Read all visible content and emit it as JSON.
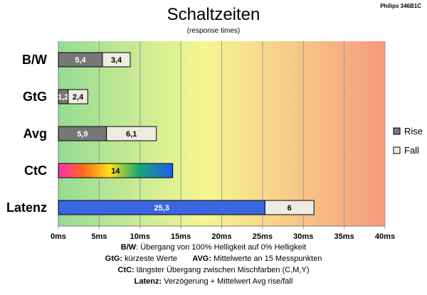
{
  "chart_data": {
    "type": "bar",
    "orientation": "horizontal",
    "stacked": true,
    "title": "Schaltzeiten",
    "subtitle": "(response times)",
    "model": "Philips 346B1C",
    "categories": [
      "B/W",
      "GtG",
      "Avg",
      "CtC",
      "Latenz"
    ],
    "series": [
      {
        "name": "Rise",
        "values": [
          5.4,
          1.2,
          5.9,
          null,
          null
        ],
        "color": "#777777"
      },
      {
        "name": "Fall",
        "values": [
          3.4,
          2.4,
          6.1,
          null,
          null
        ],
        "color": "#eeece1"
      }
    ],
    "extra_bars": [
      {
        "category": "CtC",
        "segments": [
          {
            "value": 14,
            "label": "14",
            "style": "rainbow"
          }
        ]
      },
      {
        "category": "Latenz",
        "segments": [
          {
            "value": 25.3,
            "label": "25,3",
            "color": "#3a66e0"
          },
          {
            "value": 6,
            "label": "6",
            "color": "#eeece1"
          }
        ]
      }
    ],
    "value_labels": {
      "B/W": [
        "5,4",
        "3,4"
      ],
      "GtG": [
        "1,2",
        "2,4"
      ],
      "Avg": [
        "5,9",
        "6,1"
      ]
    },
    "xlim": [
      0,
      40
    ],
    "xticks": [
      0,
      5,
      10,
      15,
      20,
      25,
      30,
      35,
      40
    ],
    "xtick_labels": [
      "0ms",
      "5ms",
      "10ms",
      "15ms",
      "20ms",
      "25ms",
      "30ms",
      "35ms",
      "40ms"
    ],
    "background_gradient": [
      "#94dc94",
      "#f6f690",
      "#f79a7e"
    ],
    "grid": true,
    "legend_position": "right",
    "legend": [
      "Rise",
      "Fall"
    ]
  },
  "notes": {
    "line1": {
      "key": "B/W",
      "text": ":  Übergang von 100% Helligkeit auf 0% Helligkeit"
    },
    "line2a": {
      "key": "GtG:",
      "text": " kürzeste  Werte"
    },
    "line2b": {
      "key": "AVG:",
      "text": " Mittelwerte  an 15 Messpunkten"
    },
    "line3": {
      "key": "CtC:",
      "text": " längster Übergang  zwischen Mischfarben  (C,M,Y)"
    },
    "line4": {
      "key": "Latenz:",
      "text": " Verzögerung  + Mittelwert  Avg rise/fall"
    }
  }
}
